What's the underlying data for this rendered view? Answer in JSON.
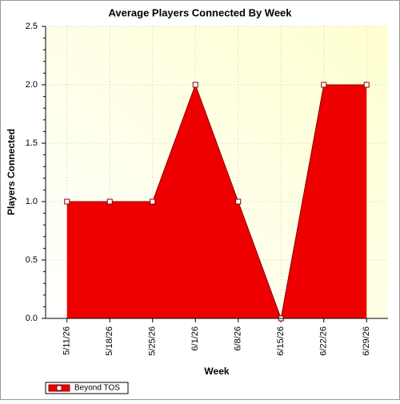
{
  "chart_data": {
    "type": "area",
    "title": "Average Players Connected By Week",
    "xlabel": "Week",
    "ylabel": "Players Connected",
    "categories": [
      "5/11/26",
      "5/18/26",
      "5/25/26",
      "6/1/26",
      "6/8/26",
      "6/15/26",
      "6/22/26",
      "6/29/26"
    ],
    "series": [
      {
        "name": "Beyond TOS",
        "color": "#ee0000",
        "values": [
          1,
          1,
          1,
          2,
          1,
          0,
          2,
          2
        ]
      }
    ],
    "ylim": [
      0,
      2.5
    ],
    "yticks": [
      {
        "value": 0,
        "label": "0.0"
      },
      0.5,
      {
        "value": 1,
        "label": "1.0"
      },
      1.5,
      {
        "value": 2,
        "label": "2.0"
      },
      2.5
    ],
    "grid": true,
    "legend": "bottom-left"
  }
}
